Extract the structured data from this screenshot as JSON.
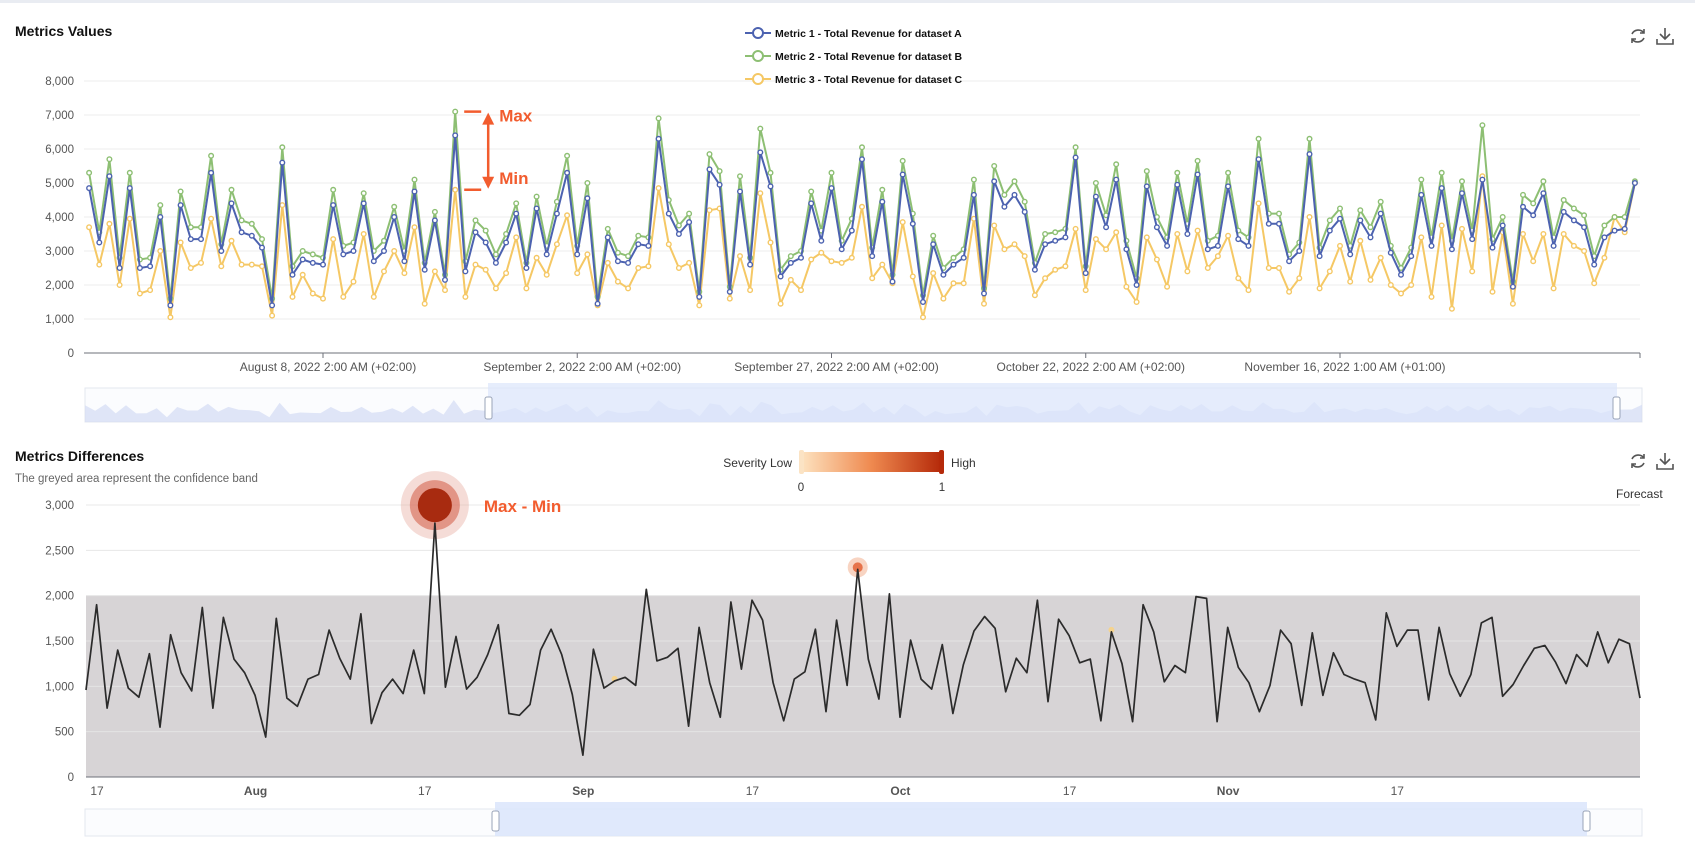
{
  "panel1": {
    "title": "Metrics Values"
  },
  "panel2": {
    "title": "Metrics Differences",
    "subtitle": "The greyed area represent the confidence band",
    "forecast_label": "Forecast"
  },
  "toolbar_icons": [
    "refresh-icon",
    "download-icon"
  ],
  "visual_map": {
    "low_label": "Severity Low",
    "high_label": "High",
    "min": "0",
    "max": "1"
  },
  "colors": {
    "metricA": "#4c62b0",
    "metricB": "#8dbf73",
    "metricC": "#f5c865",
    "annotation": "#f25c2e",
    "band": "#d7d4d6",
    "diff_line": "#2b2b2b",
    "zoom_fill": "#dbe5fb"
  },
  "chart_data": [
    {
      "type": "line",
      "title": "Metrics Values",
      "ylim": [
        0,
        8000
      ],
      "y_ticks": [
        "0",
        "1,000",
        "2,000",
        "3,000",
        "4,000",
        "5,000",
        "6,000",
        "7,000",
        "8,000"
      ],
      "x_tick_labels": [
        "August 8, 2022 2:00 AM (+02:00)",
        "September 2, 2022 2:00 AM (+02:00)",
        "September 27, 2022 2:00 AM (+02:00)",
        "October 22, 2022 2:00 AM (+02:00)",
        "November 16, 2022 1:00 AM (+01:00)"
      ],
      "x_ticks_index": [
        23,
        48,
        73,
        98,
        123
      ],
      "grid": true,
      "legend": "top-center",
      "series": [
        {
          "name": "Metric 1 - Total Revenue for dataset A",
          "values": [
            4850,
            3250,
            5200,
            2500,
            4850,
            2500,
            2550,
            4000,
            1400,
            4350,
            3350,
            3350,
            5300,
            3000,
            4400,
            3550,
            3450,
            3100,
            1400,
            5600,
            2300,
            2750,
            2650,
            2600,
            4350,
            2900,
            3000,
            4400,
            2700,
            3000,
            4000,
            2700,
            4750,
            2450,
            3900,
            2150,
            6400,
            2400,
            3550,
            3250,
            2650,
            3250,
            4100,
            2500,
            4250,
            2900,
            4100,
            5300,
            2900,
            4550,
            1450,
            3400,
            2700,
            2650,
            3200,
            3150,
            6300,
            4100,
            3500,
            3850,
            1650,
            5400,
            4950,
            1800,
            4750,
            2600,
            5900,
            4900,
            2250,
            2650,
            2800,
            4400,
            3300,
            4850,
            3050,
            3600,
            5700,
            2850,
            4450,
            2100,
            5250,
            3800,
            1500,
            3200,
            2300,
            2600,
            2800,
            4650,
            1750,
            5050,
            4300,
            4650,
            4150,
            2450,
            3200,
            3300,
            3400,
            5750,
            2350,
            4600,
            3700,
            5100,
            3050,
            2000,
            4900,
            3700,
            3150,
            4950,
            3500,
            5250,
            3050,
            3150,
            4900,
            3350,
            3150,
            5700,
            3800,
            3800,
            2700,
            3000,
            5850,
            2850,
            3600,
            3950,
            2900,
            3900,
            3400,
            4100,
            2950,
            2300,
            2850,
            4650,
            3150,
            4850,
            3050,
            4700,
            3350,
            5100,
            3100,
            3750,
            1950,
            4300,
            4050,
            4700,
            3150,
            4150,
            3900,
            3700,
            2600,
            3400,
            3600,
            3650,
            5000
          ]
        },
        {
          "name": "Metric 2 - Total Revenue for dataset B",
          "values": [
            5300,
            3550,
            5700,
            2800,
            5300,
            2750,
            2800,
            4350,
            1600,
            4750,
            3700,
            3700,
            5800,
            3200,
            4800,
            3900,
            3800,
            3350,
            1600,
            6050,
            2550,
            3000,
            2900,
            2800,
            4800,
            3150,
            3250,
            4700,
            3000,
            3300,
            4300,
            3000,
            5100,
            2650,
            4150,
            2300,
            7100,
            2700,
            3900,
            3600,
            2900,
            3500,
            4400,
            2650,
            4600,
            3150,
            4450,
            5800,
            3150,
            5000,
            1650,
            3650,
            2950,
            2850,
            3450,
            3400,
            6900,
            4500,
            3750,
            4100,
            1800,
            5850,
            5350,
            1950,
            5200,
            2800,
            6600,
            5300,
            2450,
            2850,
            3000,
            4750,
            3600,
            5300,
            3300,
            3950,
            6050,
            3100,
            4800,
            2300,
            5650,
            4100,
            1700,
            3450,
            2500,
            2800,
            3050,
            5100,
            1900,
            5500,
            4650,
            5050,
            4450,
            2650,
            3500,
            3550,
            3650,
            6050,
            2550,
            5000,
            4050,
            5550,
            3300,
            2200,
            5350,
            4000,
            3400,
            5300,
            3800,
            5650,
            3300,
            3450,
            5300,
            3600,
            3400,
            6300,
            4100,
            4100,
            2900,
            3250,
            6300,
            3100,
            3900,
            4250,
            3150,
            4200,
            3700,
            4450,
            3150,
            2500,
            3100,
            5100,
            3400,
            5300,
            3300,
            5050,
            3600,
            6700,
            3350,
            4000,
            2100,
            4650,
            4400,
            5050,
            3400,
            4500,
            4250,
            4050,
            2850,
            3750,
            4000,
            4000,
            5050
          ]
        },
        {
          "name": "Metric 3 - Total Revenue for dataset C",
          "values": [
            3700,
            2600,
            3800,
            2000,
            3950,
            1750,
            1850,
            3000,
            1050,
            3250,
            2500,
            2650,
            3950,
            2550,
            3300,
            2600,
            2600,
            2550,
            1100,
            4350,
            1650,
            2300,
            1750,
            1600,
            3350,
            1650,
            2100,
            3500,
            1650,
            2400,
            3000,
            2350,
            3700,
            1450,
            2400,
            1850,
            4800,
            1650,
            2600,
            2450,
            1900,
            2350,
            3400,
            1900,
            2800,
            2300,
            3200,
            4050,
            2350,
            2900,
            1400,
            2650,
            2100,
            1900,
            2500,
            2550,
            4850,
            3200,
            2500,
            2650,
            1400,
            4200,
            4250,
            1600,
            2850,
            1850,
            4700,
            3250,
            1450,
            2150,
            1850,
            2750,
            2950,
            2700,
            2650,
            2800,
            4300,
            2200,
            2600,
            2050,
            3850,
            2250,
            1050,
            2350,
            1600,
            2050,
            2050,
            3950,
            1450,
            3750,
            3050,
            3200,
            2850,
            1700,
            2200,
            2450,
            2550,
            3650,
            1850,
            3350,
            3050,
            3550,
            1950,
            1500,
            3400,
            2750,
            1950,
            3500,
            2400,
            3600,
            2500,
            2850,
            3450,
            2200,
            1850,
            4400,
            2500,
            2500,
            1800,
            2200,
            4000,
            1900,
            2400,
            3150,
            2100,
            3300,
            2150,
            2800,
            2000,
            1750,
            2000,
            3400,
            1650,
            3750,
            1300,
            3650,
            2400,
            5200,
            1800,
            3550,
            1450,
            3500,
            2700,
            3500,
            1900,
            3500,
            3150,
            3000,
            2050,
            2800,
            4000,
            3550,
            5000
          ]
        }
      ],
      "annotations": [
        "Max",
        "Min"
      ]
    },
    {
      "type": "line",
      "title": "Metrics Differences",
      "ylim": [
        0,
        3000
      ],
      "y_ticks": [
        "0",
        "500",
        "1,000",
        "1,500",
        "2,000",
        "2,500",
        "3,000"
      ],
      "x_tick_labels": [
        "17",
        "Aug",
        "17",
        "Sep",
        "17",
        "Oct",
        "17",
        "Nov",
        "17"
      ],
      "x_tick_positions": [
        0,
        15,
        31,
        46,
        62,
        76,
        92,
        107,
        123
      ],
      "confidence_band": [
        0,
        2000
      ],
      "series": [
        {
          "name": "difference",
          "values": [
            960,
            1900,
            760,
            1400,
            980,
            880,
            1360,
            550,
            1570,
            1150,
            950,
            1870,
            760,
            1760,
            1300,
            1150,
            900,
            440,
            1750,
            870,
            780,
            1080,
            1130,
            1620,
            1310,
            1080,
            1800,
            590,
            930,
            1080,
            920,
            1400,
            920,
            2800,
            990,
            1550,
            970,
            1100,
            1350,
            1680,
            700,
            680,
            800,
            1400,
            1630,
            1350,
            910,
            240,
            1410,
            980,
            1060,
            1100,
            1010,
            2070,
            1280,
            1320,
            1420,
            560,
            1650,
            1040,
            660,
            1930,
            1190,
            1950,
            1730,
            1040,
            620,
            1080,
            1160,
            1630,
            720,
            1730,
            1010,
            2290,
            1300,
            860,
            2020,
            660,
            1510,
            1080,
            970,
            1460,
            700,
            1240,
            1610,
            1770,
            1640,
            940,
            1310,
            1150,
            1950,
            830,
            1740,
            1560,
            1260,
            1300,
            620,
            1600,
            1250,
            610,
            1900,
            1600,
            1050,
            1230,
            1150,
            1990,
            1970,
            610,
            1650,
            1210,
            1040,
            720,
            1010,
            1620,
            1470,
            790,
            1590,
            900,
            1370,
            1130,
            1080,
            1040,
            630,
            1810,
            1440,
            1620,
            1620,
            850,
            1650,
            1140,
            890,
            1130,
            1700,
            1760,
            890,
            1020,
            1230,
            1420,
            1450,
            1270,
            1030,
            1350,
            1220,
            1600,
            1260,
            1520,
            1470,
            870
          ]
        }
      ],
      "annotation": "Max - Min",
      "anomalies_index": [
        33,
        50,
        73,
        97
      ]
    }
  ]
}
